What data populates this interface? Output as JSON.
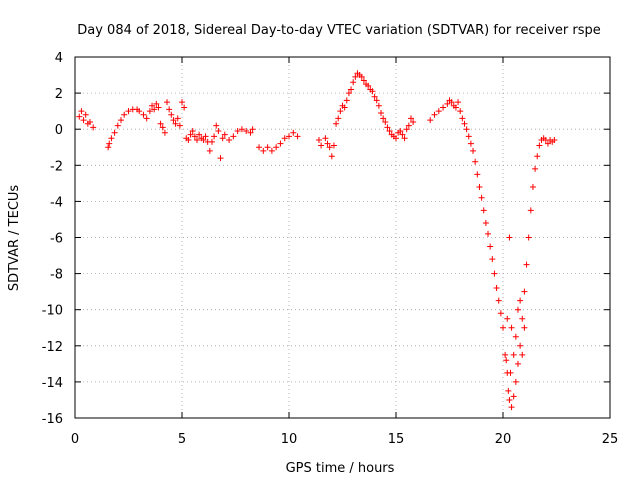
{
  "chart_data": {
    "type": "scatter",
    "title": "Day 084 of 2018, Sidereal Day-to-day VTEC variation (SDTVAR) for receiver rspe",
    "xlabel": "GPS time / hours",
    "ylabel": "SDTVAR / TECUs",
    "xlim": [
      0,
      25
    ],
    "ylim": [
      -16,
      4
    ],
    "xticks": [
      0,
      5,
      10,
      15,
      20,
      25
    ],
    "yticks": [
      -16,
      -14,
      -12,
      -10,
      -8,
      -6,
      -4,
      -2,
      0,
      2,
      4
    ],
    "grid": true,
    "marker": "plus",
    "color": "#ff0000",
    "series": [
      {
        "name": "SDTVAR",
        "points": [
          [
            0.2,
            0.7
          ],
          [
            0.3,
            1.0
          ],
          [
            0.4,
            0.5
          ],
          [
            0.5,
            0.8
          ],
          [
            0.6,
            0.3
          ],
          [
            0.7,
            0.4
          ],
          [
            0.85,
            0.1
          ],
          [
            1.55,
            -1.0
          ],
          [
            1.6,
            -0.8
          ],
          [
            1.7,
            -0.5
          ],
          [
            1.85,
            -0.2
          ],
          [
            2.0,
            0.2
          ],
          [
            2.15,
            0.5
          ],
          [
            2.3,
            0.8
          ],
          [
            2.5,
            1.0
          ],
          [
            2.7,
            1.1
          ],
          [
            2.9,
            1.1
          ],
          [
            3.0,
            1.0
          ],
          [
            3.2,
            0.8
          ],
          [
            3.35,
            0.6
          ],
          [
            3.5,
            1.0
          ],
          [
            3.6,
            1.3
          ],
          [
            3.7,
            1.1
          ],
          [
            3.8,
            1.4
          ],
          [
            3.9,
            1.2
          ],
          [
            4.0,
            0.3
          ],
          [
            4.1,
            0.1
          ],
          [
            4.2,
            -0.2
          ],
          [
            4.3,
            1.5
          ],
          [
            4.4,
            1.1
          ],
          [
            4.5,
            0.8
          ],
          [
            4.6,
            0.5
          ],
          [
            4.7,
            0.3
          ],
          [
            4.8,
            0.6
          ],
          [
            4.9,
            0.2
          ],
          [
            5.0,
            1.5
          ],
          [
            5.1,
            1.2
          ],
          [
            5.2,
            -0.5
          ],
          [
            5.3,
            -0.6
          ],
          [
            5.4,
            -0.3
          ],
          [
            5.5,
            -0.1
          ],
          [
            5.6,
            -0.4
          ],
          [
            5.7,
            -0.6
          ],
          [
            5.8,
            -0.3
          ],
          [
            5.9,
            -0.5
          ],
          [
            6.0,
            -0.6
          ],
          [
            6.1,
            -0.4
          ],
          [
            6.2,
            -0.7
          ],
          [
            6.3,
            -1.2
          ],
          [
            6.4,
            -0.7
          ],
          [
            6.5,
            -0.4
          ],
          [
            6.6,
            0.2
          ],
          [
            6.7,
            -0.1
          ],
          [
            6.8,
            -1.6
          ],
          [
            6.9,
            -0.5
          ],
          [
            7.0,
            -0.3
          ],
          [
            7.2,
            -0.6
          ],
          [
            7.4,
            -0.4
          ],
          [
            7.6,
            -0.1
          ],
          [
            7.8,
            0.0
          ],
          [
            8.0,
            -0.1
          ],
          [
            8.2,
            -0.2
          ],
          [
            8.3,
            0.0
          ],
          [
            8.6,
            -1.0
          ],
          [
            8.8,
            -1.2
          ],
          [
            9.0,
            -1.0
          ],
          [
            9.2,
            -1.2
          ],
          [
            9.4,
            -1.0
          ],
          [
            9.6,
            -0.8
          ],
          [
            9.8,
            -0.5
          ],
          [
            10.0,
            -0.4
          ],
          [
            10.2,
            -0.2
          ],
          [
            10.4,
            -0.4
          ],
          [
            11.4,
            -0.6
          ],
          [
            11.5,
            -0.9
          ],
          [
            11.7,
            -0.5
          ],
          [
            11.8,
            -0.8
          ],
          [
            11.9,
            -1.0
          ],
          [
            12.0,
            -1.5
          ],
          [
            12.1,
            -0.9
          ],
          [
            12.2,
            0.3
          ],
          [
            12.3,
            0.6
          ],
          [
            12.4,
            1.0
          ],
          [
            12.5,
            1.3
          ],
          [
            12.6,
            1.2
          ],
          [
            12.7,
            1.6
          ],
          [
            12.8,
            2.0
          ],
          [
            12.9,
            2.2
          ],
          [
            13.0,
            2.6
          ],
          [
            13.1,
            2.9
          ],
          [
            13.2,
            3.1
          ],
          [
            13.3,
            3.0
          ],
          [
            13.4,
            2.9
          ],
          [
            13.5,
            2.7
          ],
          [
            13.6,
            2.5
          ],
          [
            13.7,
            2.4
          ],
          [
            13.8,
            2.2
          ],
          [
            13.9,
            2.1
          ],
          [
            14.0,
            1.8
          ],
          [
            14.1,
            1.6
          ],
          [
            14.2,
            1.3
          ],
          [
            14.3,
            0.9
          ],
          [
            14.4,
            0.6
          ],
          [
            14.5,
            0.4
          ],
          [
            14.6,
            0.1
          ],
          [
            14.7,
            -0.1
          ],
          [
            14.8,
            -0.3
          ],
          [
            14.9,
            -0.4
          ],
          [
            15.0,
            -0.5
          ],
          [
            15.1,
            -0.2
          ],
          [
            15.2,
            -0.1
          ],
          [
            15.3,
            -0.3
          ],
          [
            15.4,
            -0.5
          ],
          [
            15.5,
            0.0
          ],
          [
            15.6,
            0.2
          ],
          [
            15.7,
            0.6
          ],
          [
            15.8,
            0.4
          ],
          [
            16.6,
            0.5
          ],
          [
            16.8,
            0.8
          ],
          [
            17.0,
            1.0
          ],
          [
            17.2,
            1.2
          ],
          [
            17.4,
            1.4
          ],
          [
            17.5,
            1.6
          ],
          [
            17.6,
            1.5
          ],
          [
            17.7,
            1.3
          ],
          [
            17.8,
            1.2
          ],
          [
            17.9,
            1.5
          ],
          [
            18.0,
            1.0
          ],
          [
            18.1,
            0.6
          ],
          [
            18.2,
            0.3
          ],
          [
            18.3,
            0.0
          ],
          [
            18.4,
            -0.4
          ],
          [
            18.5,
            -0.8
          ],
          [
            18.6,
            -1.2
          ],
          [
            18.7,
            -1.8
          ],
          [
            18.8,
            -2.5
          ],
          [
            18.9,
            -3.2
          ],
          [
            19.0,
            -3.8
          ],
          [
            19.1,
            -4.5
          ],
          [
            19.2,
            -5.2
          ],
          [
            19.3,
            -5.8
          ],
          [
            19.4,
            -6.5
          ],
          [
            19.5,
            -7.2
          ],
          [
            19.6,
            -8.0
          ],
          [
            19.7,
            -8.8
          ],
          [
            19.8,
            -9.5
          ],
          [
            19.9,
            -10.2
          ],
          [
            20.0,
            -11.0
          ],
          [
            20.1,
            -12.5
          ],
          [
            20.2,
            -13.5
          ],
          [
            20.25,
            -14.5
          ],
          [
            20.3,
            -15.0
          ],
          [
            20.4,
            -15.4
          ],
          [
            20.5,
            -14.8
          ],
          [
            20.6,
            -14.0
          ],
          [
            20.7,
            -13.0
          ],
          [
            20.8,
            -12.0
          ],
          [
            20.9,
            -10.5
          ],
          [
            21.0,
            -9.0
          ],
          [
            21.1,
            -7.5
          ],
          [
            21.2,
            -6.0
          ],
          [
            21.3,
            -4.5
          ],
          [
            21.4,
            -3.2
          ],
          [
            21.5,
            -2.2
          ],
          [
            21.6,
            -1.5
          ],
          [
            21.7,
            -0.9
          ],
          [
            21.8,
            -0.6
          ],
          [
            21.9,
            -0.5
          ],
          [
            22.0,
            -0.6
          ],
          [
            22.1,
            -0.8
          ],
          [
            22.2,
            -0.6
          ],
          [
            22.3,
            -0.7
          ],
          [
            22.4,
            -0.6
          ],
          [
            20.3,
            -6.0
          ],
          [
            20.2,
            -10.5
          ],
          [
            20.5,
            -12.5
          ],
          [
            20.4,
            -11.0
          ],
          [
            20.6,
            -11.5
          ],
          [
            20.8,
            -9.5
          ],
          [
            20.9,
            -12.5
          ],
          [
            21.0,
            -11.0
          ],
          [
            20.7,
            -10.0
          ],
          [
            20.35,
            -13.5
          ],
          [
            20.15,
            -12.8
          ]
        ]
      }
    ]
  }
}
